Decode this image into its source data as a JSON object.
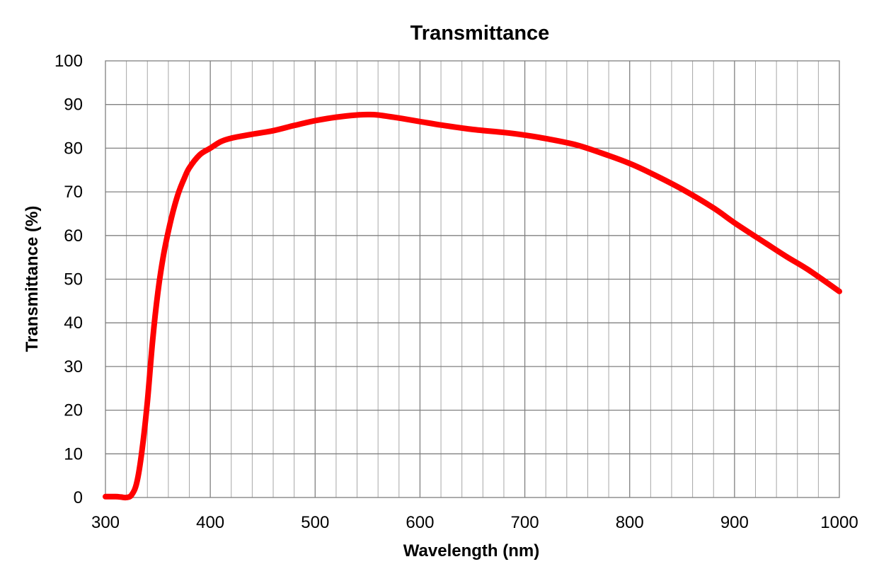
{
  "chart_data": {
    "type": "line",
    "title": "Transmittance",
    "xlabel": "Wavelength (nm)",
    "ylabel": "Transmittance (%)",
    "xlim": [
      300,
      1000
    ],
    "ylim": [
      0,
      100
    ],
    "x_ticks": [
      300,
      400,
      500,
      600,
      700,
      800,
      900,
      1000
    ],
    "y_ticks": [
      0,
      10,
      20,
      30,
      40,
      50,
      60,
      70,
      80,
      90,
      100
    ],
    "x_minor_step": 20,
    "grid": true,
    "legend": "none",
    "series": [
      {
        "color": "#ff0000",
        "points": [
          [
            300,
            0.2
          ],
          [
            310,
            0.2
          ],
          [
            315,
            0.1
          ],
          [
            320,
            0.0
          ],
          [
            325,
            0.6
          ],
          [
            330,
            3.5
          ],
          [
            335,
            11
          ],
          [
            340,
            22
          ],
          [
            345,
            36
          ],
          [
            350,
            47
          ],
          [
            355,
            55
          ],
          [
            360,
            61
          ],
          [
            365,
            66
          ],
          [
            370,
            70
          ],
          [
            375,
            73
          ],
          [
            380,
            75.5
          ],
          [
            390,
            78.5
          ],
          [
            400,
            80
          ],
          [
            410,
            81.5
          ],
          [
            420,
            82.3
          ],
          [
            440,
            83.2
          ],
          [
            460,
            84
          ],
          [
            480,
            85.2
          ],
          [
            500,
            86.3
          ],
          [
            520,
            87.1
          ],
          [
            540,
            87.6
          ],
          [
            550,
            87.7
          ],
          [
            560,
            87.6
          ],
          [
            580,
            86.9
          ],
          [
            600,
            86.1
          ],
          [
            620,
            85.3
          ],
          [
            650,
            84.3
          ],
          [
            680,
            83.6
          ],
          [
            700,
            83.0
          ],
          [
            720,
            82.2
          ],
          [
            750,
            80.7
          ],
          [
            780,
            78.3
          ],
          [
            800,
            76.5
          ],
          [
            820,
            74.3
          ],
          [
            850,
            70.6
          ],
          [
            880,
            66.3
          ],
          [
            900,
            62.9
          ],
          [
            930,
            58.2
          ],
          [
            950,
            55.1
          ],
          [
            970,
            52.2
          ],
          [
            1000,
            47.2
          ]
        ]
      }
    ]
  }
}
